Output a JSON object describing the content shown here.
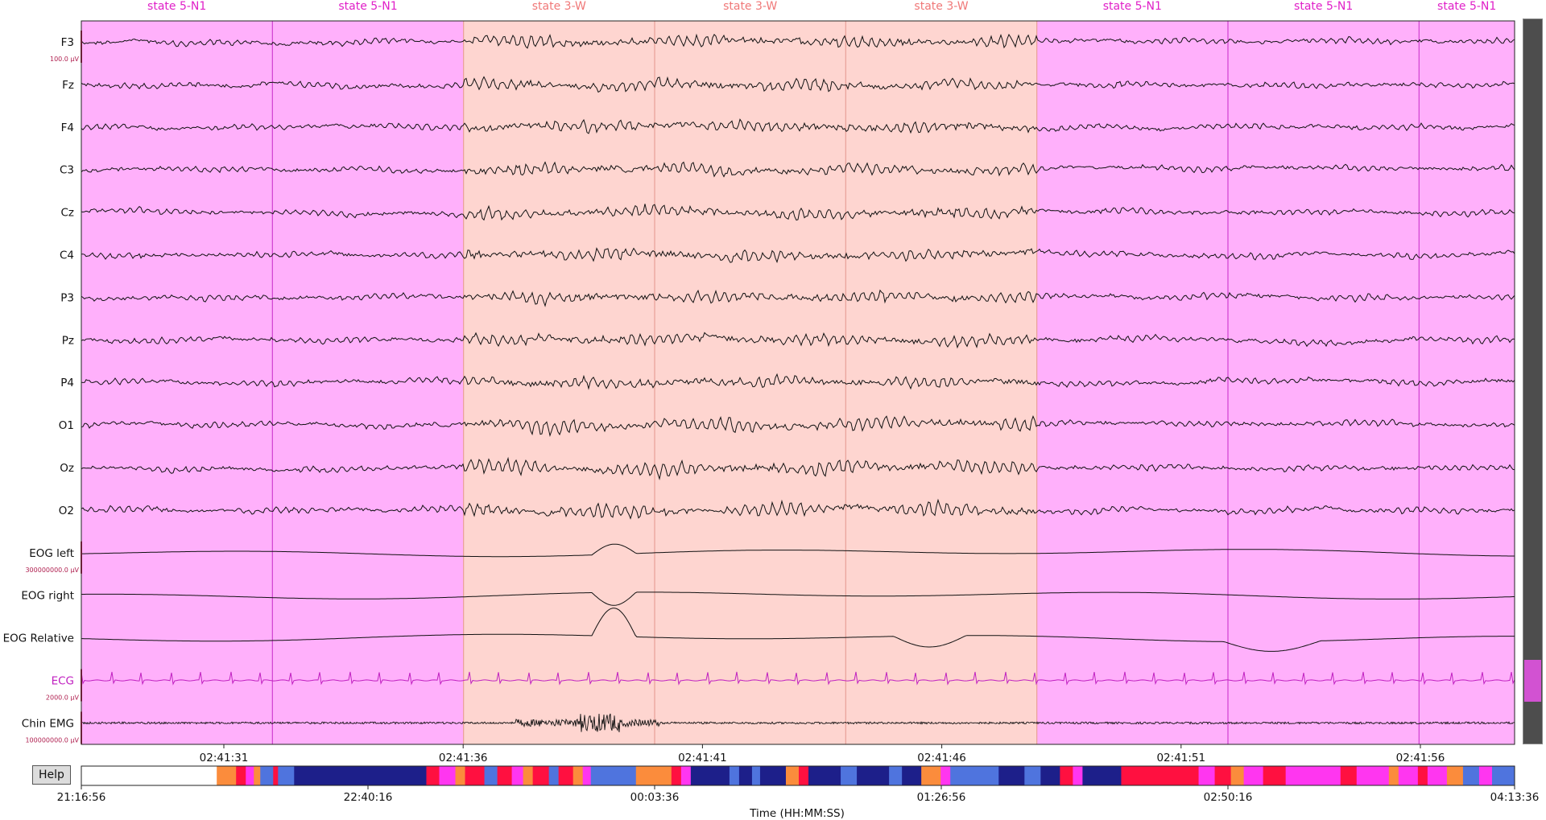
{
  "colors": {
    "n1_bg": "#ffb0fb",
    "w_bg": "#fed5d0",
    "n1_label": "#e020c8",
    "w_label": "#f07878",
    "n1_boundary": "#d040d0",
    "w_boundary": "#e8a098",
    "trace": "#111111",
    "ecg_trace": "#c020c0",
    "scale_label": "#b02050"
  },
  "epochs": [
    {
      "label": "state 5-N1",
      "stage": "N1"
    },
    {
      "label": "state 5-N1",
      "stage": "N1"
    },
    {
      "label": "state 3-W",
      "stage": "W"
    },
    {
      "label": "state 3-W",
      "stage": "W"
    },
    {
      "label": "state 3-W",
      "stage": "W"
    },
    {
      "label": "state 5-N1",
      "stage": "N1"
    },
    {
      "label": "state 5-N1",
      "stage": "N1"
    },
    {
      "label": "state 5-N1",
      "stage": "N1"
    }
  ],
  "channels": [
    {
      "name": "F3",
      "scale": "100.0 µV",
      "kind": "eeg"
    },
    {
      "name": "Fz",
      "kind": "eeg"
    },
    {
      "name": "F4",
      "kind": "eeg"
    },
    {
      "name": "C3",
      "kind": "eeg"
    },
    {
      "name": "Cz",
      "kind": "eeg"
    },
    {
      "name": "C4",
      "kind": "eeg"
    },
    {
      "name": "P3",
      "kind": "eeg"
    },
    {
      "name": "Pz",
      "kind": "eeg"
    },
    {
      "name": "P4",
      "kind": "eeg"
    },
    {
      "name": "O1",
      "kind": "eeg"
    },
    {
      "name": "Oz",
      "kind": "eeg"
    },
    {
      "name": "O2",
      "kind": "eeg"
    },
    {
      "name": "EOG left",
      "scale": "300000000.0 µV",
      "kind": "eog"
    },
    {
      "name": "EOG right",
      "kind": "eog"
    },
    {
      "name": "EOG Relative",
      "kind": "eog"
    },
    {
      "name": "ECG",
      "scale": "2000.0 µV",
      "kind": "ecg"
    },
    {
      "name": "Chin EMG",
      "scale": "100000000.0 µV",
      "kind": "emg"
    }
  ],
  "time_ticks": [
    "02:41:31",
    "02:41:36",
    "02:41:41",
    "02:41:46",
    "02:41:51",
    "02:41:56"
  ],
  "help_label": "Help",
  "hypnogram_ticks": [
    "21:16:56",
    "22:40:16",
    "00:03:36",
    "01:26:56",
    "02:50:16",
    "04:13:36"
  ],
  "xaxis_title": "Time (HH:MM:SS)",
  "hypnogram_colors": {
    "W": "#fb8c3c",
    "N1": "#ff36f0",
    "N2": "#4f74de",
    "N3": "#1d1f8a",
    "REM": "#ff1040",
    "unscored": "#ffffff"
  },
  "hypnogram": [
    [
      "unscored",
      0.084
    ],
    [
      "W",
      0.012
    ],
    [
      "REM",
      0.006
    ],
    [
      "N1",
      0.005
    ],
    [
      "W",
      0.004
    ],
    [
      "N2",
      0.008
    ],
    [
      "REM",
      0.003
    ],
    [
      "N2",
      0.01
    ],
    [
      "N3",
      0.082
    ],
    [
      "REM",
      0.008
    ],
    [
      "N1",
      0.01
    ],
    [
      "W",
      0.006
    ],
    [
      "REM",
      0.012
    ],
    [
      "N2",
      0.008
    ],
    [
      "REM",
      0.009
    ],
    [
      "N1",
      0.007
    ],
    [
      "W",
      0.006
    ],
    [
      "REM",
      0.01
    ],
    [
      "N2",
      0.006
    ],
    [
      "REM",
      0.009
    ],
    [
      "W",
      0.006
    ],
    [
      "N1",
      0.005
    ],
    [
      "N2",
      0.028
    ],
    [
      "W",
      0.022
    ],
    [
      "REM",
      0.006
    ],
    [
      "N1",
      0.006
    ],
    [
      "N3",
      0.024
    ],
    [
      "N2",
      0.006
    ],
    [
      "N3",
      0.008
    ],
    [
      "N2",
      0.005
    ],
    [
      "N3",
      0.016
    ],
    [
      "W",
      0.008
    ],
    [
      "REM",
      0.006
    ],
    [
      "N3",
      0.02
    ],
    [
      "N2",
      0.01
    ],
    [
      "N3",
      0.02
    ],
    [
      "N2",
      0.008
    ],
    [
      "N3",
      0.012
    ],
    [
      "W",
      0.012
    ],
    [
      "N1",
      0.006
    ],
    [
      "N2",
      0.03
    ],
    [
      "N3",
      0.016
    ],
    [
      "N2",
      0.01
    ],
    [
      "N3",
      0.012
    ],
    [
      "REM",
      0.008
    ],
    [
      "N1",
      0.006
    ],
    [
      "N3",
      0.024
    ],
    [
      "REM",
      0.048
    ],
    [
      "N1",
      0.01
    ],
    [
      "REM",
      0.01
    ],
    [
      "W",
      0.008
    ],
    [
      "N1",
      0.012
    ],
    [
      "REM",
      0.014
    ],
    [
      "N1",
      0.034
    ],
    [
      "REM",
      0.01
    ],
    [
      "N1",
      0.02
    ],
    [
      "W",
      0.006
    ],
    [
      "N1",
      0.012
    ],
    [
      "REM",
      0.006
    ],
    [
      "N1",
      0.012
    ],
    [
      "W",
      0.01
    ],
    [
      "N2",
      0.01
    ],
    [
      "N1",
      0.008
    ],
    [
      "N2",
      0.014
    ]
  ]
}
